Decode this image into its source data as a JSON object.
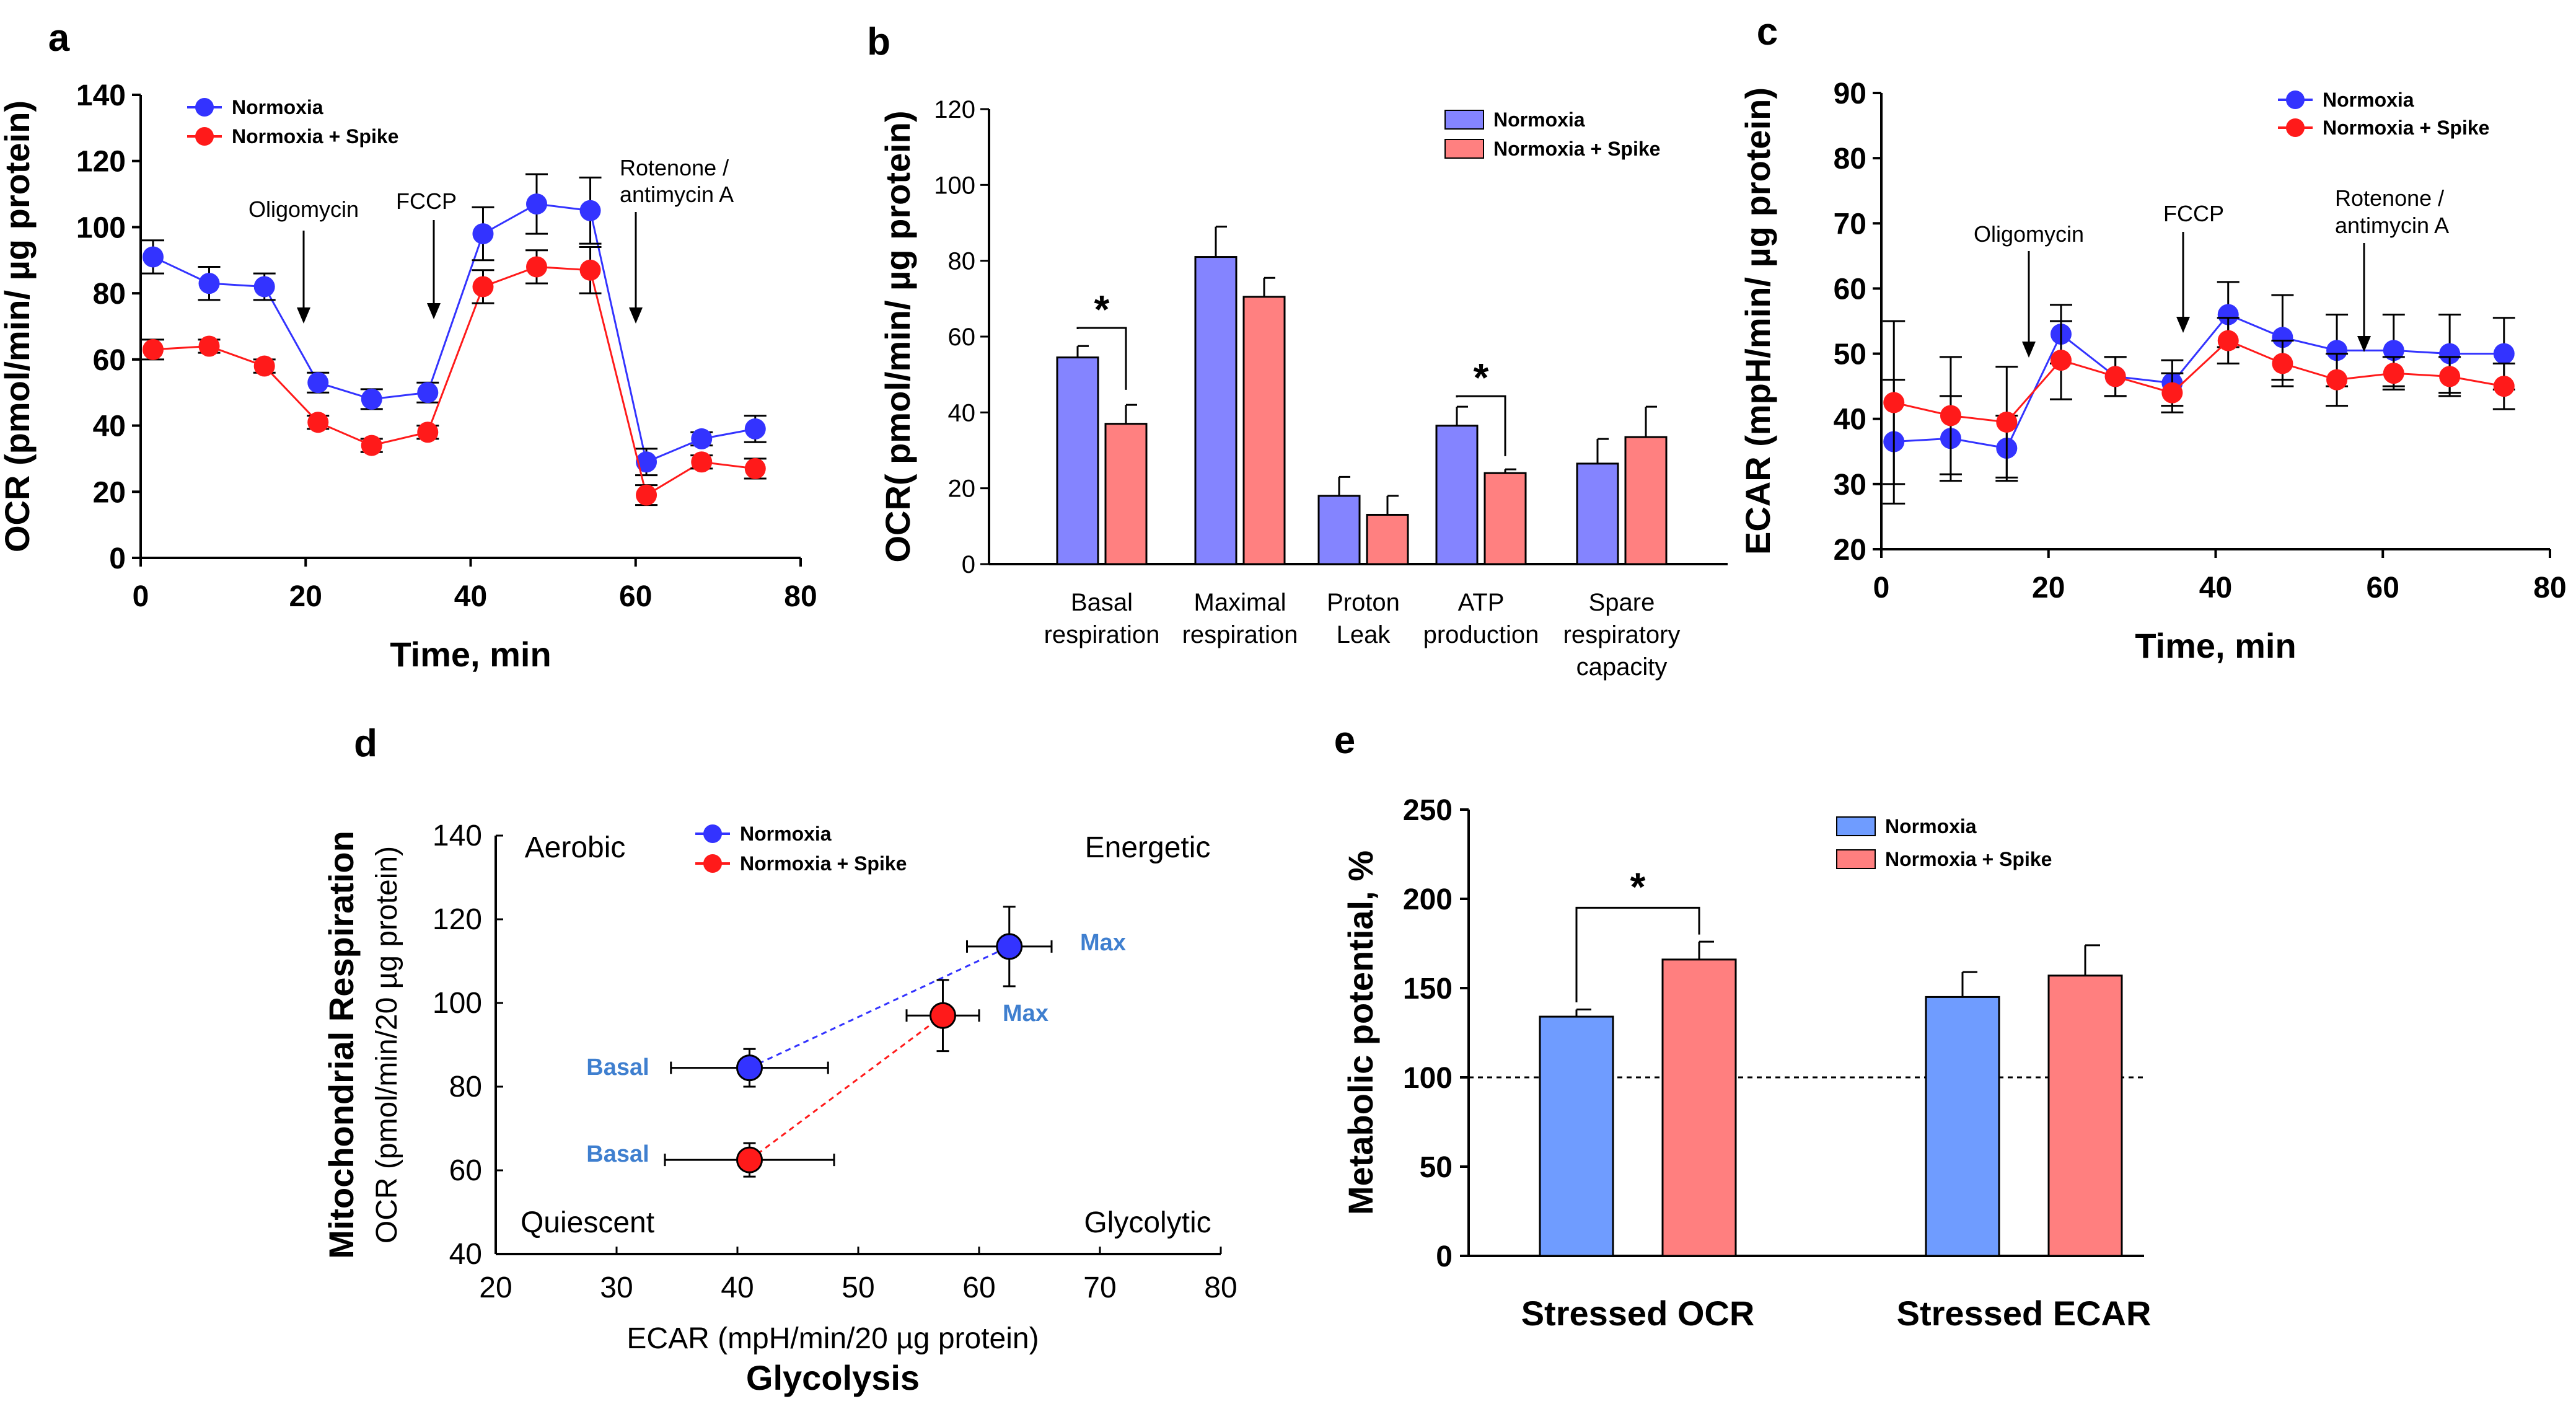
{
  "colors": {
    "normoxia": "#3333ff",
    "spike": "#ff1a1a",
    "bar_normoxia": "#8484ff",
    "bar_spike": "#ff8080",
    "bar_e_normoxia": "#6f9cff",
    "bar_e_spike": "#ff7f7f",
    "label_blue": "#3f7fcf"
  },
  "chart_data": [
    {
      "panel": "a",
      "type": "line",
      "xlabel": "Time, min",
      "ylabel": "OCR (pmol/min/ µg protein)",
      "xlim": [
        0,
        80
      ],
      "ylim": [
        0,
        140
      ],
      "xticks": [
        "0",
        "20",
        "40",
        "60",
        "80"
      ],
      "yticks": [
        "0",
        "20",
        "40",
        "60",
        "80",
        "100",
        "120",
        "140"
      ],
      "x": [
        1.5,
        8.3,
        15,
        21.5,
        28,
        34.8,
        41.5,
        48,
        54.5,
        61.3,
        68,
        74.5
      ],
      "series": [
        {
          "name": "Normoxia",
          "values": [
            91,
            83,
            82,
            53,
            48,
            50,
            98,
            107,
            105,
            29,
            36,
            39
          ],
          "err": [
            5,
            5,
            4,
            3,
            3,
            3,
            8,
            9,
            10,
            4,
            2,
            4
          ]
        },
        {
          "name": "Normoxia + Spike",
          "values": [
            63,
            64,
            58,
            41,
            34,
            38,
            82,
            88,
            87,
            19,
            29,
            27
          ],
          "err": [
            3,
            2,
            2,
            2,
            2,
            2,
            5,
            5,
            7,
            3,
            2,
            3
          ]
        }
      ],
      "annotations": [
        "Oligomycin",
        "FCCP",
        "Rotenone /",
        "antimycin A"
      ]
    },
    {
      "panel": "b",
      "type": "bar",
      "ylabel": "OCR( pmol/min/ µg protein)",
      "ylim": [
        0,
        120
      ],
      "yticks": [
        "0",
        "20",
        "40",
        "60",
        "80",
        "100",
        "120"
      ],
      "categories": [
        [
          "Basal",
          "respiration"
        ],
        [
          "Maximal",
          "respiration"
        ],
        [
          "Proton",
          "Leak"
        ],
        [
          "ATP",
          "production"
        ],
        [
          "Spare",
          "respiratory",
          "capacity"
        ]
      ],
      "series": [
        {
          "name": "Normoxia",
          "values": [
            54.5,
            81,
            18,
            36.5,
            26.5
          ],
          "err": [
            3,
            8,
            5,
            5,
            6.5
          ]
        },
        {
          "name": "Normoxia + Spike",
          "values": [
            37,
            70.5,
            13,
            24,
            33.5
          ],
          "err": [
            5,
            5,
            5,
            1,
            8
          ]
        }
      ],
      "significance": "*"
    },
    {
      "panel": "c",
      "type": "line",
      "xlabel": "Time, min",
      "ylabel": "ECAR (mpH/min/ µg protein)",
      "xlim": [
        0,
        80
      ],
      "ylim": [
        20,
        90
      ],
      "xticks": [
        "0",
        "20",
        "40",
        "60",
        "80"
      ],
      "yticks": [
        "20",
        "30",
        "40",
        "50",
        "60",
        "70",
        "80",
        "90"
      ],
      "x": [
        1.5,
        8.3,
        15,
        21.5,
        28,
        34.8,
        41.5,
        48,
        54.5,
        61.3,
        68,
        74.5
      ],
      "series": [
        {
          "name": "Normoxia",
          "values": [
            36.5,
            37,
            35.5,
            53,
            46.5,
            45.5,
            56,
            52.5,
            50.5,
            50.5,
            50,
            50
          ],
          "err": [
            9.5,
            6.5,
            5,
            4.5,
            3,
            3.5,
            5,
            6.5,
            5.5,
            5.5,
            6,
            5.5
          ]
        },
        {
          "name": "Normoxia + Spike",
          "values": [
            42.5,
            40.5,
            39.5,
            49,
            46.5,
            44,
            52,
            48.5,
            46,
            47,
            46.5,
            45
          ],
          "err": [
            12.5,
            9,
            8.5,
            6,
            3,
            3,
            3.5,
            3.5,
            4,
            2.5,
            3,
            3.5
          ]
        }
      ],
      "annotations": [
        "Oligomycin",
        "FCCP",
        "Rotenone /",
        "antimycin A"
      ]
    },
    {
      "panel": "d",
      "type": "scatter",
      "xlabel": "ECAR (mpH/min/20 µg protein)",
      "xlabel2": "Glycolysis",
      "ylabel": "OCR (pmol/min/20 µg protein)",
      "ylabel2": "Mitochondrial Respiration",
      "xlim": [
        20,
        80
      ],
      "ylim": [
        40,
        140
      ],
      "xticks": [
        "20",
        "30",
        "40",
        "50",
        "60",
        "70",
        "80"
      ],
      "yticks": [
        "40",
        "60",
        "80",
        "100",
        "120",
        "140"
      ],
      "quadrants": [
        "Aerobic",
        "Energetic",
        "Quiescent",
        "Glycolytic"
      ],
      "point_labels": [
        "Basal",
        "Max"
      ],
      "series": [
        {
          "name": "Normoxia",
          "points": [
            {
              "label": "Basal",
              "x": 41,
              "y": 84.5,
              "xerr": 6.5,
              "yerr": 4.5
            },
            {
              "label": "Max",
              "x": 62.5,
              "y": 113.5,
              "xerr": 3.5,
              "yerr": 9.5
            }
          ]
        },
        {
          "name": "Normoxia + Spike",
          "points": [
            {
              "label": "Basal",
              "x": 41,
              "y": 62.5,
              "xerr": 7,
              "yerr": 4
            },
            {
              "label": "Max",
              "x": 57,
              "y": 97,
              "xerr": 3,
              "yerr": 8.5
            }
          ]
        }
      ]
    },
    {
      "panel": "e",
      "type": "bar",
      "ylabel": "Metabolic potential, %",
      "ylim": [
        0,
        250
      ],
      "yticks": [
        "0",
        "50",
        "100",
        "150",
        "200",
        "250"
      ],
      "categories": [
        "Stressed OCR",
        "Stressed ECAR"
      ],
      "reference_line": 100,
      "series": [
        {
          "name": "Normoxia",
          "values": [
            134,
            145
          ],
          "err": [
            4,
            14
          ]
        },
        {
          "name": "Normoxia + Spike",
          "values": [
            166,
            157
          ],
          "err": [
            10,
            17
          ]
        }
      ],
      "significance": "*"
    }
  ]
}
